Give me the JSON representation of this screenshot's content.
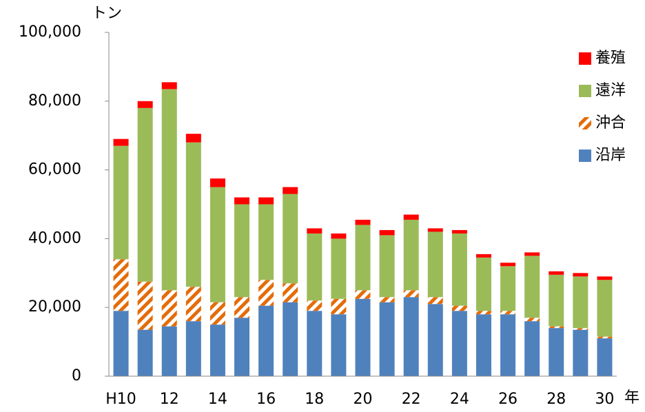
{
  "chart_data": {
    "type": "bar",
    "stacked": true,
    "y_unit": "トン",
    "x_unit": "年",
    "categories": [
      "H10",
      null,
      "12",
      null,
      "14",
      null,
      "16",
      null,
      "18",
      null,
      "20",
      null,
      "22",
      null,
      "24",
      null,
      "26",
      null,
      "28",
      null,
      "30"
    ],
    "series": [
      {
        "name": "沿岸",
        "color": "#4f81bd",
        "values": [
          19000,
          13500,
          14500,
          16000,
          15000,
          17000,
          20500,
          21500,
          19000,
          18000,
          22500,
          21500,
          23000,
          21000,
          19000,
          18000,
          18000,
          16000,
          14000,
          13500,
          11000
        ]
      },
      {
        "name": "沖合",
        "color": "#e46c0a",
        "hatch": true,
        "values": [
          15000,
          14000,
          10500,
          10000,
          6500,
          6000,
          7500,
          5500,
          3000,
          4500,
          2500,
          1500,
          2000,
          2000,
          1500,
          1000,
          1000,
          1000,
          500,
          500,
          500
        ]
      },
      {
        "name": "遠洋",
        "color": "#9bbb59",
        "values": [
          33000,
          50500,
          58500,
          42000,
          33500,
          27000,
          22000,
          26000,
          19500,
          17500,
          19000,
          18000,
          20500,
          19000,
          21000,
          15500,
          13000,
          18000,
          15000,
          15000,
          16500
        ]
      },
      {
        "name": "養殖",
        "color": "#ff0000",
        "values": [
          2000,
          2000,
          2000,
          2500,
          2500,
          2000,
          2000,
          2000,
          1500,
          1500,
          1500,
          1500,
          1500,
          1000,
          1000,
          1000,
          1000,
          1000,
          1000,
          1000,
          1000
        ]
      }
    ],
    "ylim": [
      0,
      100000
    ],
    "yticks": [
      0,
      {
        "value": 20000,
        "label": "20,000"
      },
      {
        "value": 40000,
        "label": "40,000"
      },
      {
        "value": 60000,
        "label": "60,000"
      },
      {
        "value": 80000,
        "label": "80,000"
      },
      {
        "value": 100000,
        "label": "100,000"
      }
    ],
    "grid": false,
    "legend": "upper right"
  }
}
